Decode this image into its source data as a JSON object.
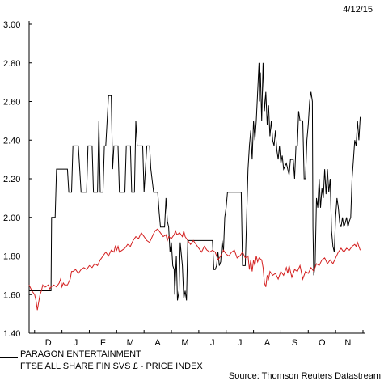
{
  "date": "4/12/15",
  "source": "Source: Thomson Reuters Datastream",
  "colors": {
    "paragon": "#000000",
    "ftse": "#d42020",
    "axis": "#000000"
  },
  "chart_data": {
    "type": "line",
    "title": "",
    "xlabel": "",
    "ylabel": "",
    "ylim": [
      1.4,
      3.0
    ],
    "yticks": [
      "3.00",
      "2.80",
      "2.60",
      "2.40",
      "2.20",
      "2.00",
      "1.80",
      "1.60",
      "1.40"
    ],
    "yticks_values": [
      3.0,
      2.8,
      2.6,
      2.4,
      2.2,
      2.0,
      1.8,
      1.6,
      1.4
    ],
    "xlim": [
      0,
      12
    ],
    "month_labels": [
      "D",
      "J",
      "F",
      "M",
      "A",
      "M",
      "J",
      "J",
      "A",
      "S",
      "O",
      "N"
    ],
    "month_label_pos": [
      0.5,
      1.5,
      2.5,
      3.5,
      4.5,
      5.5,
      6.5,
      7.5,
      8.5,
      9.5,
      10.5,
      11.45
    ],
    "legend_position": "bottom-left",
    "series": [
      {
        "name": "PARAGON ENTERTAINMENT",
        "color": "#000000",
        "points": [
          [
            -0.2,
            1.62
          ],
          [
            0.3,
            1.62
          ],
          [
            0.6,
            1.62
          ],
          [
            0.62,
            2.0
          ],
          [
            0.75,
            2.0
          ],
          [
            0.8,
            2.25
          ],
          [
            1.2,
            2.25
          ],
          [
            1.25,
            2.13
          ],
          [
            1.35,
            2.13
          ],
          [
            1.4,
            2.37
          ],
          [
            1.6,
            2.37
          ],
          [
            1.7,
            2.13
          ],
          [
            1.9,
            2.13
          ],
          [
            1.95,
            2.37
          ],
          [
            2.1,
            2.37
          ],
          [
            2.15,
            2.13
          ],
          [
            2.3,
            2.13
          ],
          [
            2.35,
            2.5
          ],
          [
            2.4,
            2.13
          ],
          [
            2.5,
            2.13
          ],
          [
            2.55,
            2.37
          ],
          [
            2.6,
            2.37
          ],
          [
            2.7,
            2.63
          ],
          [
            2.8,
            2.63
          ],
          [
            2.85,
            2.25
          ],
          [
            2.9,
            2.37
          ],
          [
            3.05,
            2.37
          ],
          [
            3.1,
            2.13
          ],
          [
            3.3,
            2.13
          ],
          [
            3.35,
            2.37
          ],
          [
            3.5,
            2.37
          ],
          [
            3.55,
            2.13
          ],
          [
            3.65,
            2.13
          ],
          [
            3.7,
            2.5
          ],
          [
            3.75,
            2.37
          ],
          [
            3.95,
            2.37
          ],
          [
            4.0,
            2.13
          ],
          [
            4.1,
            2.37
          ],
          [
            4.2,
            2.37
          ],
          [
            4.25,
            2.25
          ],
          [
            4.35,
            2.13
          ],
          [
            4.5,
            2.13
          ],
          [
            4.55,
            2.03
          ],
          [
            4.6,
            1.95
          ],
          [
            4.75,
            1.95
          ],
          [
            4.8,
            2.1
          ],
          [
            4.85,
            1.98
          ],
          [
            4.9,
            1.95
          ],
          [
            4.95,
            1.82
          ],
          [
            5.0,
            1.87
          ],
          [
            5.05,
            1.75
          ],
          [
            5.1,
            1.73
          ],
          [
            5.12,
            1.6
          ],
          [
            5.18,
            1.8
          ],
          [
            5.22,
            1.57
          ],
          [
            5.28,
            1.62
          ],
          [
            5.32,
            1.87
          ],
          [
            5.4,
            1.75
          ],
          [
            5.45,
            1.58
          ],
          [
            5.5,
            1.62
          ],
          [
            5.55,
            1.57
          ],
          [
            5.6,
            1.88
          ],
          [
            5.7,
            1.88
          ],
          [
            6.5,
            1.88
          ],
          [
            6.55,
            1.73
          ],
          [
            6.6,
            1.73
          ],
          [
            6.65,
            1.75
          ],
          [
            6.7,
            1.82
          ],
          [
            6.75,
            1.75
          ],
          [
            6.8,
            1.77
          ],
          [
            6.85,
            1.88
          ],
          [
            6.9,
            1.82
          ],
          [
            6.95,
            2.0
          ],
          [
            7.0,
            2.05
          ],
          [
            7.05,
            2.13
          ],
          [
            7.55,
            2.13
          ],
          [
            7.6,
            1.75
          ],
          [
            7.7,
            1.75
          ],
          [
            7.75,
            2.0
          ],
          [
            7.8,
            2.25
          ],
          [
            7.85,
            2.37
          ],
          [
            7.9,
            2.45
          ],
          [
            7.95,
            2.3
          ],
          [
            8.0,
            2.5
          ],
          [
            8.05,
            2.4
          ],
          [
            8.1,
            2.5
          ],
          [
            8.15,
            2.65
          ],
          [
            8.2,
            2.8
          ],
          [
            8.22,
            2.6
          ],
          [
            8.25,
            2.75
          ],
          [
            8.3,
            2.5
          ],
          [
            8.35,
            2.8
          ],
          [
            8.4,
            2.55
          ],
          [
            8.45,
            2.65
          ],
          [
            8.5,
            2.48
          ],
          [
            8.55,
            2.58
          ],
          [
            8.6,
            2.42
          ],
          [
            8.65,
            2.5
          ],
          [
            8.7,
            2.4
          ],
          [
            8.75,
            2.37
          ],
          [
            8.8,
            2.45
          ],
          [
            8.85,
            2.35
          ],
          [
            8.9,
            2.3
          ],
          [
            8.95,
            2.37
          ],
          [
            9.0,
            2.28
          ],
          [
            9.05,
            2.32
          ],
          [
            9.1,
            2.25
          ],
          [
            9.2,
            2.28
          ],
          [
            9.3,
            2.22
          ],
          [
            9.35,
            2.3
          ],
          [
            9.45,
            2.3
          ],
          [
            9.5,
            2.2
          ],
          [
            9.55,
            2.37
          ],
          [
            9.6,
            2.37
          ],
          [
            9.65,
            2.55
          ],
          [
            9.7,
            2.5
          ],
          [
            9.8,
            2.5
          ],
          [
            9.85,
            2.2
          ],
          [
            9.9,
            2.2
          ],
          [
            9.95,
            2.4
          ],
          [
            10.0,
            2.48
          ],
          [
            10.05,
            2.6
          ],
          [
            10.1,
            2.65
          ],
          [
            10.15,
            2.6
          ],
          [
            10.17,
            1.95
          ],
          [
            10.2,
            1.7
          ],
          [
            10.25,
            1.75
          ],
          [
            10.3,
            2.1
          ],
          [
            10.35,
            2.05
          ],
          [
            10.4,
            2.2
          ],
          [
            10.45,
            2.05
          ],
          [
            10.5,
            2.15
          ],
          [
            10.55,
            2.1
          ],
          [
            10.6,
            2.25
          ],
          [
            10.65,
            2.12
          ],
          [
            10.7,
            2.25
          ],
          [
            10.75,
            2.13
          ],
          [
            10.8,
            2.2
          ],
          [
            10.85,
            1.93
          ],
          [
            10.9,
            1.85
          ],
          [
            10.95,
            1.82
          ],
          [
            11.0,
            2.0
          ],
          [
            11.05,
            2.1
          ],
          [
            11.1,
            2.05
          ],
          [
            11.15,
            1.97
          ],
          [
            11.2,
            1.95
          ],
          [
            11.25,
            2.0
          ],
          [
            11.3,
            1.95
          ],
          [
            11.35,
            1.97
          ],
          [
            11.4,
            2.0
          ],
          [
            11.45,
            1.95
          ],
          [
            11.5,
            1.98
          ],
          [
            11.55,
            2.0
          ],
          [
            11.6,
            2.2
          ],
          [
            11.65,
            2.3
          ],
          [
            11.7,
            2.4
          ],
          [
            11.75,
            2.37
          ],
          [
            11.8,
            2.5
          ],
          [
            11.85,
            2.4
          ],
          [
            11.9,
            2.52
          ]
        ]
      },
      {
        "name": "FTSE ALL SHARE FIN SVS £ - PRICE INDEX",
        "color": "#d42020",
        "points": [
          [
            -0.2,
            1.65
          ],
          [
            -0.1,
            1.62
          ],
          [
            0.0,
            1.6
          ],
          [
            0.05,
            1.57
          ],
          [
            0.1,
            1.52
          ],
          [
            0.15,
            1.56
          ],
          [
            0.2,
            1.6
          ],
          [
            0.25,
            1.62
          ],
          [
            0.3,
            1.65
          ],
          [
            0.35,
            1.64
          ],
          [
            0.4,
            1.64
          ],
          [
            0.5,
            1.65
          ],
          [
            0.55,
            1.63
          ],
          [
            0.6,
            1.64
          ],
          [
            0.7,
            1.65
          ],
          [
            0.8,
            1.64
          ],
          [
            0.9,
            1.66
          ],
          [
            0.95,
            1.68
          ],
          [
            1.0,
            1.64
          ],
          [
            1.05,
            1.66
          ],
          [
            1.1,
            1.65
          ],
          [
            1.2,
            1.65
          ],
          [
            1.3,
            1.68
          ],
          [
            1.35,
            1.72
          ],
          [
            1.4,
            1.72
          ],
          [
            1.5,
            1.73
          ],
          [
            1.6,
            1.71
          ],
          [
            1.7,
            1.73
          ],
          [
            1.8,
            1.74
          ],
          [
            1.9,
            1.73
          ],
          [
            2.0,
            1.75
          ],
          [
            2.1,
            1.74
          ],
          [
            2.2,
            1.76
          ],
          [
            2.3,
            1.75
          ],
          [
            2.4,
            1.78
          ],
          [
            2.5,
            1.8
          ],
          [
            2.6,
            1.82
          ],
          [
            2.7,
            1.8
          ],
          [
            2.8,
            1.83
          ],
          [
            2.9,
            1.82
          ],
          [
            2.95,
            1.85
          ],
          [
            3.0,
            1.83
          ],
          [
            3.05,
            1.85
          ],
          [
            3.1,
            1.82
          ],
          [
            3.2,
            1.83
          ],
          [
            3.3,
            1.84
          ],
          [
            3.4,
            1.86
          ],
          [
            3.5,
            1.85
          ],
          [
            3.6,
            1.88
          ],
          [
            3.7,
            1.9
          ],
          [
            3.8,
            1.89
          ],
          [
            3.9,
            1.92
          ],
          [
            4.0,
            1.9
          ],
          [
            4.1,
            1.88
          ],
          [
            4.2,
            1.87
          ],
          [
            4.3,
            1.9
          ],
          [
            4.4,
            1.93
          ],
          [
            4.5,
            1.94
          ],
          [
            4.6,
            1.92
          ],
          [
            4.7,
            1.9
          ],
          [
            4.8,
            1.91
          ],
          [
            4.85,
            1.88
          ],
          [
            4.9,
            1.9
          ],
          [
            5.0,
            1.89
          ],
          [
            5.1,
            1.91
          ],
          [
            5.15,
            1.93
          ],
          [
            5.2,
            1.91
          ],
          [
            5.3,
            1.92
          ],
          [
            5.4,
            1.9
          ],
          [
            5.45,
            1.93
          ],
          [
            5.5,
            1.9
          ],
          [
            5.6,
            1.88
          ],
          [
            5.7,
            1.86
          ],
          [
            5.8,
            1.88
          ],
          [
            5.9,
            1.86
          ],
          [
            6.0,
            1.84
          ],
          [
            6.1,
            1.82
          ],
          [
            6.2,
            1.85
          ],
          [
            6.3,
            1.83
          ],
          [
            6.4,
            1.82
          ],
          [
            6.5,
            1.83
          ],
          [
            6.6,
            1.82
          ],
          [
            6.7,
            1.78
          ],
          [
            6.8,
            1.8
          ],
          [
            6.9,
            1.83
          ],
          [
            7.0,
            1.81
          ],
          [
            7.1,
            1.8
          ],
          [
            7.2,
            1.82
          ],
          [
            7.3,
            1.83
          ],
          [
            7.4,
            1.79
          ],
          [
            7.5,
            1.8
          ],
          [
            7.6,
            1.82
          ],
          [
            7.7,
            1.79
          ],
          [
            7.8,
            1.8
          ],
          [
            7.85,
            1.73
          ],
          [
            7.9,
            1.78
          ],
          [
            7.95,
            1.72
          ],
          [
            8.0,
            1.78
          ],
          [
            8.05,
            1.75
          ],
          [
            8.1,
            1.8
          ],
          [
            8.15,
            1.77
          ],
          [
            8.2,
            1.79
          ],
          [
            8.3,
            1.78
          ],
          [
            8.35,
            1.74
          ],
          [
            8.4,
            1.66
          ],
          [
            8.45,
            1.64
          ],
          [
            8.5,
            1.7
          ],
          [
            8.55,
            1.68
          ],
          [
            8.6,
            1.72
          ],
          [
            8.7,
            1.7
          ],
          [
            8.8,
            1.71
          ],
          [
            8.9,
            1.68
          ],
          [
            9.0,
            1.72
          ],
          [
            9.1,
            1.7
          ],
          [
            9.2,
            1.74
          ],
          [
            9.25,
            1.71
          ],
          [
            9.3,
            1.75
          ],
          [
            9.35,
            1.72
          ],
          [
            9.4,
            1.69
          ],
          [
            9.5,
            1.73
          ],
          [
            9.6,
            1.72
          ],
          [
            9.7,
            1.75
          ],
          [
            9.8,
            1.68
          ],
          [
            9.9,
            1.72
          ],
          [
            10.0,
            1.71
          ],
          [
            10.1,
            1.74
          ],
          [
            10.2,
            1.72
          ],
          [
            10.3,
            1.76
          ],
          [
            10.4,
            1.75
          ],
          [
            10.5,
            1.78
          ],
          [
            10.6,
            1.79
          ],
          [
            10.7,
            1.76
          ],
          [
            10.8,
            1.78
          ],
          [
            10.9,
            1.76
          ],
          [
            11.0,
            1.79
          ],
          [
            11.1,
            1.82
          ],
          [
            11.2,
            1.84
          ],
          [
            11.3,
            1.82
          ],
          [
            11.4,
            1.84
          ],
          [
            11.5,
            1.83
          ],
          [
            11.6,
            1.85
          ],
          [
            11.7,
            1.86
          ],
          [
            11.75,
            1.85
          ],
          [
            11.8,
            1.87
          ],
          [
            11.85,
            1.85
          ],
          [
            11.9,
            1.83
          ]
        ]
      }
    ]
  }
}
